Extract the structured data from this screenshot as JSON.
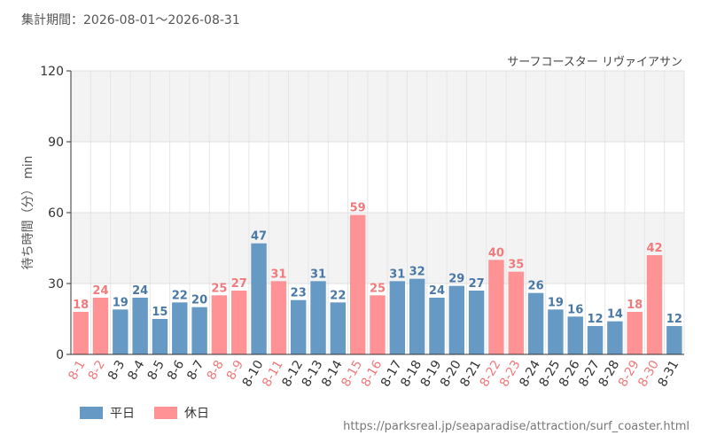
{
  "period_text": "集計期間：2026-08-01～2026-08-31",
  "source_url": "https://parksreal.jp/seaparadise/attraction/surf_coaster.html",
  "legend": {
    "weekday": "平日",
    "holiday": "休日"
  },
  "colors": {
    "weekday": "#6699c4",
    "holiday": "#ff9294",
    "holiday_label": "#f07a7c",
    "weekday_label": "#4a78a6"
  },
  "chart_data": {
    "type": "bar",
    "title": "サーフコースター リヴァイアサン",
    "ylabel": "待ち時間（分） min",
    "xlabel": "",
    "ylim": [
      0,
      120
    ],
    "yticks": [
      0,
      30,
      60,
      90,
      120
    ],
    "grid": true,
    "legend_position": "bottom-left",
    "categories": [
      "8-1",
      "8-2",
      "8-3",
      "8-4",
      "8-5",
      "8-6",
      "8-7",
      "8-8",
      "8-9",
      "8-10",
      "8-11",
      "8-12",
      "8-13",
      "8-14",
      "8-15",
      "8-16",
      "8-17",
      "8-18",
      "8-19",
      "8-20",
      "8-21",
      "8-22",
      "8-23",
      "8-24",
      "8-25",
      "8-26",
      "8-27",
      "8-28",
      "8-29",
      "8-30",
      "8-31"
    ],
    "values": [
      18,
      24,
      19,
      24,
      15,
      22,
      20,
      25,
      27,
      47,
      31,
      23,
      31,
      22,
      59,
      25,
      31,
      32,
      24,
      29,
      27,
      40,
      35,
      26,
      19,
      16,
      12,
      14,
      18,
      42,
      12
    ],
    "day_type": [
      "holiday",
      "holiday",
      "weekday",
      "weekday",
      "weekday",
      "weekday",
      "weekday",
      "holiday",
      "holiday",
      "weekday",
      "holiday",
      "weekday",
      "weekday",
      "weekday",
      "holiday",
      "holiday",
      "weekday",
      "weekday",
      "weekday",
      "weekday",
      "weekday",
      "holiday",
      "holiday",
      "weekday",
      "weekday",
      "weekday",
      "weekday",
      "weekday",
      "holiday",
      "holiday",
      "weekday"
    ]
  }
}
